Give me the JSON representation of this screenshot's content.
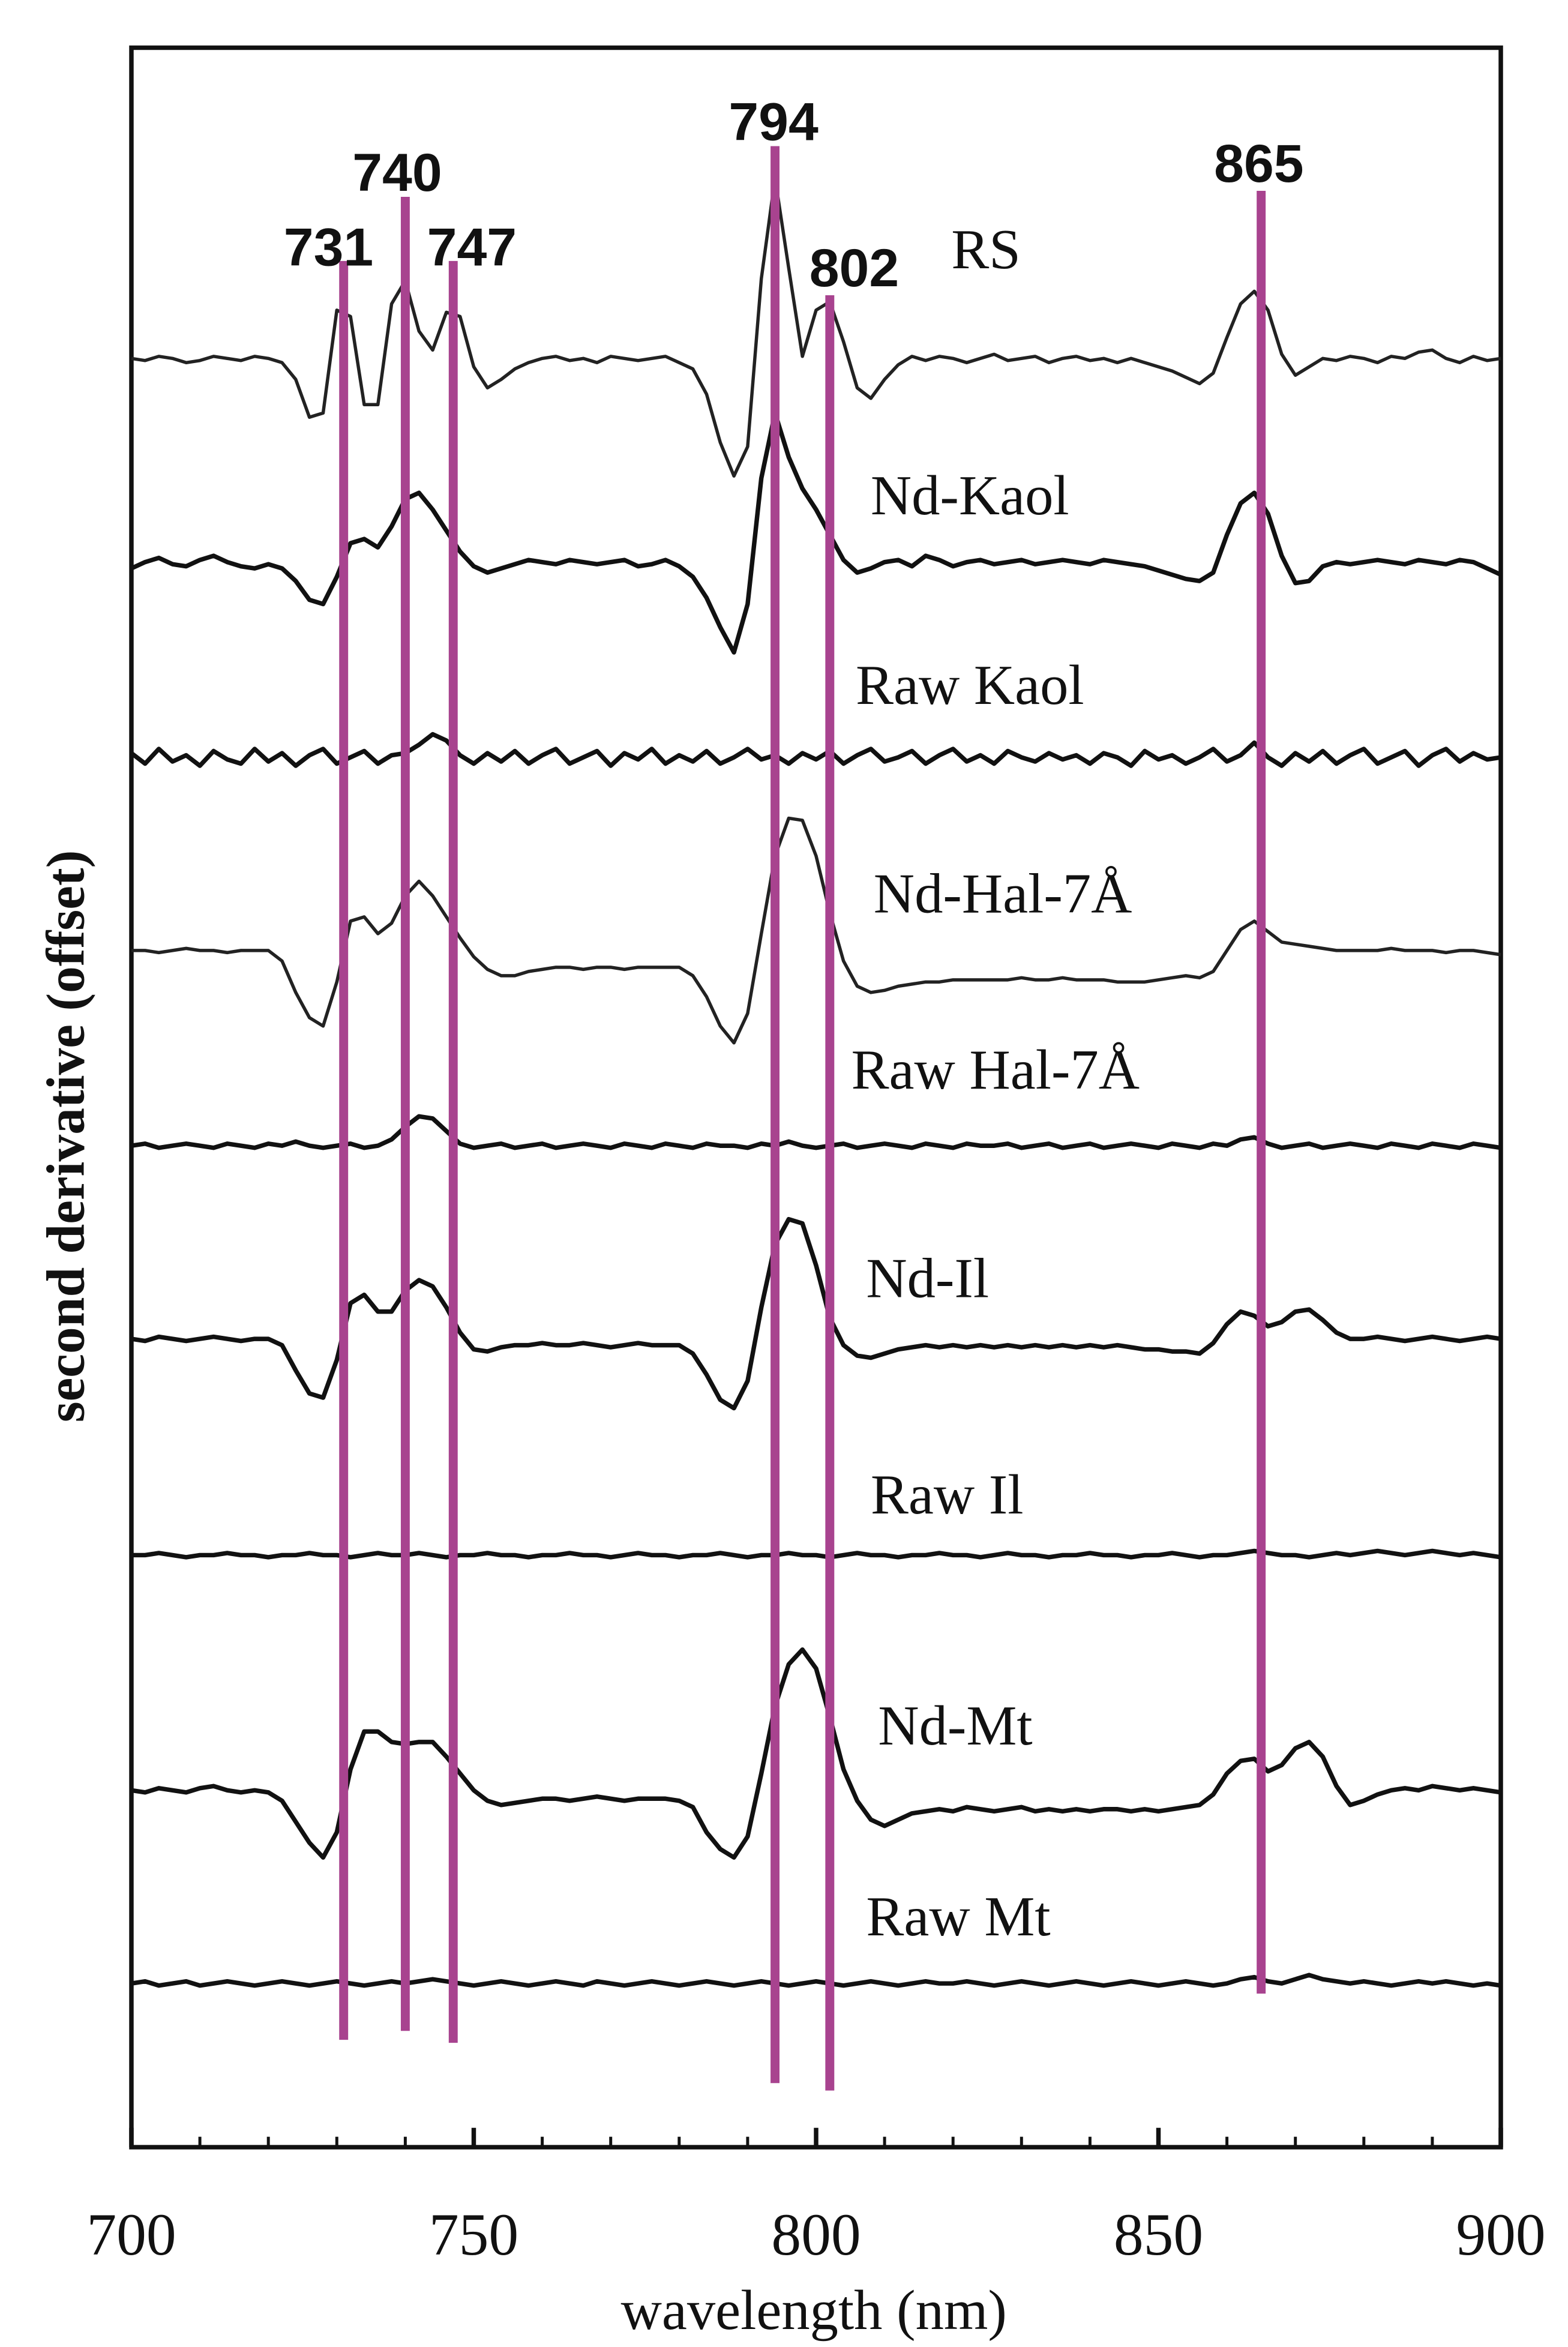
{
  "chart_data": {
    "type": "line",
    "xlabel": "wavelength (nm)",
    "ylabel": "second derivative (offset)",
    "xlim": [
      700,
      900
    ],
    "xticks": [
      700,
      750,
      800,
      850,
      900
    ],
    "xminorticks": [
      710,
      720,
      730,
      740,
      760,
      770,
      780,
      790,
      810,
      820,
      830,
      840,
      860,
      870,
      880,
      890
    ],
    "ylim": [
      0,
      100
    ],
    "peak_lines": [
      731,
      740,
      747,
      794,
      802,
      865
    ],
    "peak_line_color": "#a8438f",
    "x": [
      700,
      702,
      704,
      706,
      708,
      710,
      712,
      714,
      716,
      718,
      720,
      722,
      724,
      726,
      728,
      730,
      732,
      734,
      736,
      738,
      740,
      742,
      744,
      746,
      748,
      750,
      752,
      754,
      756,
      758,
      760,
      762,
      764,
      766,
      768,
      770,
      772,
      774,
      776,
      778,
      780,
      782,
      784,
      786,
      788,
      790,
      792,
      794,
      796,
      798,
      800,
      802,
      804,
      806,
      808,
      810,
      812,
      814,
      816,
      818,
      820,
      822,
      824,
      826,
      828,
      830,
      832,
      834,
      836,
      838,
      840,
      842,
      844,
      846,
      848,
      850,
      852,
      854,
      856,
      858,
      860,
      862,
      864,
      866,
      868,
      870,
      872,
      874,
      876,
      878,
      880,
      882,
      884,
      886,
      888,
      890,
      892,
      894,
      896,
      898,
      900
    ],
    "series": [
      {
        "name": "RS",
        "color": "#222222",
        "values": [
          85.2,
          85.1,
          85.3,
          85.2,
          85.0,
          85.1,
          85.3,
          85.2,
          85.1,
          85.3,
          85.2,
          85.0,
          84.2,
          82.4,
          82.6,
          87.5,
          87.2,
          83.0,
          83.0,
          87.8,
          88.9,
          86.5,
          85.6,
          87.4,
          87.2,
          84.8,
          83.8,
          84.2,
          84.7,
          85.0,
          85.2,
          85.3,
          85.1,
          85.2,
          85.0,
          85.3,
          85.2,
          85.1,
          85.2,
          85.3,
          85.0,
          84.7,
          83.5,
          81.2,
          79.6,
          81.0,
          89.0,
          93.8,
          89.5,
          85.3,
          87.5,
          87.9,
          86.0,
          83.8,
          83.3,
          84.2,
          84.9,
          85.3,
          85.1,
          85.3,
          85.2,
          85.0,
          85.2,
          85.4,
          85.1,
          85.2,
          85.3,
          85.0,
          85.2,
          85.3,
          85.1,
          85.2,
          85.0,
          85.2,
          85.0,
          84.8,
          84.6,
          84.3,
          84.0,
          84.5,
          86.2,
          87.8,
          88.4,
          87.5,
          85.4,
          84.4,
          84.8,
          85.2,
          85.1,
          85.3,
          85.2,
          85.0,
          85.3,
          85.2,
          85.5,
          85.6,
          85.2,
          85.0,
          85.3,
          85.1,
          85.2
        ]
      },
      {
        "name": "Nd-Kaol",
        "color": "#111111",
        "values": [
          75.2,
          75.5,
          75.7,
          75.4,
          75.3,
          75.6,
          75.8,
          75.5,
          75.3,
          75.2,
          75.4,
          75.2,
          74.6,
          73.7,
          73.5,
          74.8,
          76.4,
          76.6,
          76.2,
          77.2,
          78.5,
          78.8,
          78.0,
          77.0,
          76.0,
          75.3,
          75.0,
          75.2,
          75.4,
          75.6,
          75.5,
          75.4,
          75.6,
          75.5,
          75.4,
          75.5,
          75.6,
          75.3,
          75.4,
          75.6,
          75.3,
          74.8,
          73.8,
          72.4,
          71.2,
          73.5,
          79.5,
          82.6,
          80.5,
          79.0,
          78.0,
          76.8,
          75.6,
          75.0,
          75.2,
          75.5,
          75.6,
          75.3,
          75.8,
          75.6,
          75.3,
          75.5,
          75.6,
          75.4,
          75.5,
          75.6,
          75.4,
          75.5,
          75.6,
          75.5,
          75.4,
          75.6,
          75.5,
          75.4,
          75.3,
          75.1,
          74.9,
          74.7,
          74.6,
          75.0,
          76.8,
          78.3,
          78.8,
          77.8,
          75.8,
          74.5,
          74.6,
          75.3,
          75.5,
          75.4,
          75.5,
          75.6,
          75.5,
          75.4,
          75.6,
          75.5,
          75.4,
          75.6,
          75.5,
          75.2,
          74.9
        ]
      },
      {
        "name": "Raw Kaol",
        "color": "#111111",
        "values": [
          66.4,
          65.9,
          66.6,
          66.0,
          66.3,
          65.8,
          66.5,
          66.1,
          65.9,
          66.6,
          66.0,
          66.4,
          65.8,
          66.3,
          66.6,
          65.9,
          66.2,
          66.5,
          65.9,
          66.3,
          66.4,
          66.8,
          67.3,
          67.0,
          66.3,
          65.9,
          66.4,
          66.0,
          66.5,
          65.9,
          66.3,
          66.6,
          65.9,
          66.2,
          66.5,
          65.8,
          66.4,
          66.1,
          66.6,
          65.9,
          66.3,
          66.0,
          66.5,
          65.9,
          66.2,
          66.6,
          66.1,
          66.3,
          65.9,
          66.4,
          66.1,
          66.5,
          65.9,
          66.3,
          66.6,
          66.0,
          66.2,
          66.5,
          65.9,
          66.3,
          66.6,
          66.0,
          66.3,
          65.9,
          66.5,
          66.2,
          66.0,
          66.4,
          66.1,
          66.3,
          65.9,
          66.4,
          66.2,
          65.8,
          66.5,
          66.1,
          66.3,
          65.9,
          66.2,
          66.6,
          66.0,
          66.3,
          66.9,
          66.2,
          65.8,
          66.4,
          66.0,
          66.5,
          65.9,
          66.3,
          66.6,
          65.9,
          66.2,
          66.5,
          65.8,
          66.3,
          66.6,
          66.0,
          66.4,
          66.1,
          66.2
        ]
      },
      {
        "name": "Nd-Hal-7Å",
        "color": "#222222",
        "values": [
          57.0,
          57.0,
          56.9,
          57.0,
          57.1,
          57.0,
          57.0,
          56.9,
          57.0,
          57.0,
          57.0,
          56.5,
          55.0,
          53.8,
          53.4,
          55.5,
          58.4,
          58.6,
          57.8,
          58.3,
          59.6,
          60.3,
          59.6,
          58.6,
          57.6,
          56.7,
          56.1,
          55.8,
          55.8,
          56.0,
          56.1,
          56.2,
          56.2,
          56.1,
          56.2,
          56.2,
          56.1,
          56.2,
          56.2,
          56.2,
          56.2,
          55.8,
          54.8,
          53.4,
          52.6,
          54.0,
          57.8,
          61.5,
          63.3,
          63.2,
          61.5,
          58.8,
          56.5,
          55.3,
          55.0,
          55.1,
          55.3,
          55.4,
          55.5,
          55.5,
          55.6,
          55.6,
          55.6,
          55.6,
          55.6,
          55.7,
          55.6,
          55.6,
          55.7,
          55.6,
          55.6,
          55.6,
          55.5,
          55.5,
          55.5,
          55.6,
          55.7,
          55.8,
          55.7,
          56.0,
          57.0,
          58.0,
          58.4,
          57.9,
          57.4,
          57.3,
          57.2,
          57.1,
          57.0,
          57.0,
          57.0,
          57.0,
          57.1,
          57.0,
          57.0,
          57.0,
          56.9,
          57.0,
          57.0,
          56.9,
          56.8
        ]
      },
      {
        "name": "Raw Hal-7Å",
        "color": "#111111",
        "values": [
          47.7,
          47.8,
          47.6,
          47.7,
          47.8,
          47.7,
          47.6,
          47.8,
          47.7,
          47.6,
          47.8,
          47.7,
          47.9,
          47.7,
          47.6,
          47.7,
          47.8,
          47.6,
          47.7,
          48.0,
          48.6,
          49.1,
          49.0,
          48.4,
          47.8,
          47.6,
          47.7,
          47.8,
          47.6,
          47.7,
          47.8,
          47.6,
          47.7,
          47.8,
          47.7,
          47.6,
          47.8,
          47.7,
          47.6,
          47.8,
          47.7,
          47.6,
          47.8,
          47.7,
          47.7,
          47.6,
          47.8,
          47.7,
          47.9,
          47.7,
          47.6,
          47.7,
          47.8,
          47.6,
          47.7,
          47.8,
          47.7,
          47.6,
          47.8,
          47.7,
          47.6,
          47.8,
          47.7,
          47.7,
          47.8,
          47.6,
          47.7,
          47.8,
          47.6,
          47.7,
          47.8,
          47.6,
          47.7,
          47.8,
          47.7,
          47.6,
          47.8,
          47.7,
          47.6,
          47.8,
          47.7,
          48.0,
          48.1,
          47.8,
          47.6,
          47.7,
          47.8,
          47.6,
          47.7,
          47.8,
          47.7,
          47.6,
          47.8,
          47.7,
          47.6,
          47.8,
          47.7,
          47.6,
          47.8,
          47.7,
          47.6
        ]
      },
      {
        "name": "Nd-Il",
        "color": "#111111",
        "values": [
          38.5,
          38.4,
          38.6,
          38.5,
          38.4,
          38.5,
          38.6,
          38.5,
          38.4,
          38.5,
          38.5,
          38.2,
          37.0,
          35.9,
          35.7,
          37.5,
          40.2,
          40.6,
          39.8,
          39.8,
          40.8,
          41.3,
          41.0,
          40.0,
          38.8,
          38.0,
          37.9,
          38.1,
          38.2,
          38.2,
          38.3,
          38.2,
          38.2,
          38.3,
          38.2,
          38.1,
          38.2,
          38.3,
          38.2,
          38.2,
          38.2,
          37.8,
          36.8,
          35.6,
          35.2,
          36.5,
          40.0,
          43.0,
          44.2,
          44.0,
          42.0,
          39.5,
          38.2,
          37.7,
          37.6,
          37.8,
          38.0,
          38.1,
          38.2,
          38.1,
          38.2,
          38.1,
          38.2,
          38.1,
          38.2,
          38.1,
          38.2,
          38.1,
          38.2,
          38.1,
          38.2,
          38.1,
          38.2,
          38.1,
          38.0,
          38.0,
          37.9,
          37.9,
          37.8,
          38.3,
          39.2,
          39.8,
          39.6,
          39.1,
          39.3,
          39.8,
          39.9,
          39.4,
          38.8,
          38.5,
          38.5,
          38.6,
          38.5,
          38.4,
          38.5,
          38.6,
          38.5,
          38.4,
          38.5,
          38.6,
          38.5
        ]
      },
      {
        "name": "Raw Il",
        "color": "#111111",
        "values": [
          28.2,
          28.2,
          28.3,
          28.2,
          28.1,
          28.2,
          28.2,
          28.3,
          28.2,
          28.2,
          28.1,
          28.2,
          28.2,
          28.3,
          28.2,
          28.2,
          28.1,
          28.2,
          28.3,
          28.2,
          28.2,
          28.3,
          28.2,
          28.1,
          28.2,
          28.2,
          28.3,
          28.2,
          28.2,
          28.1,
          28.2,
          28.2,
          28.3,
          28.2,
          28.2,
          28.1,
          28.2,
          28.3,
          28.2,
          28.2,
          28.1,
          28.2,
          28.2,
          28.3,
          28.2,
          28.1,
          28.2,
          28.2,
          28.3,
          28.2,
          28.2,
          28.1,
          28.2,
          28.3,
          28.2,
          28.2,
          28.1,
          28.2,
          28.2,
          28.3,
          28.2,
          28.2,
          28.1,
          28.2,
          28.3,
          28.2,
          28.2,
          28.1,
          28.2,
          28.2,
          28.3,
          28.2,
          28.2,
          28.1,
          28.2,
          28.2,
          28.3,
          28.2,
          28.1,
          28.2,
          28.2,
          28.3,
          28.4,
          28.3,
          28.2,
          28.2,
          28.1,
          28.2,
          28.3,
          28.2,
          28.3,
          28.4,
          28.3,
          28.2,
          28.3,
          28.4,
          28.3,
          28.2,
          28.3,
          28.2,
          28.1
        ]
      },
      {
        "name": "Nd-Mt",
        "color": "#111111",
        "values": [
          17.0,
          16.9,
          17.1,
          17.0,
          16.9,
          17.1,
          17.2,
          17.0,
          16.9,
          17.0,
          16.9,
          16.5,
          15.5,
          14.5,
          13.8,
          15.0,
          18.0,
          19.8,
          19.8,
          19.3,
          19.2,
          19.3,
          19.3,
          18.6,
          17.8,
          17.0,
          16.5,
          16.3,
          16.4,
          16.5,
          16.6,
          16.6,
          16.5,
          16.6,
          16.7,
          16.6,
          16.5,
          16.6,
          16.6,
          16.6,
          16.5,
          16.2,
          15.0,
          14.2,
          13.8,
          14.8,
          17.8,
          21.0,
          23.0,
          23.7,
          22.8,
          20.5,
          18.0,
          16.5,
          15.6,
          15.3,
          15.6,
          15.9,
          16.0,
          16.1,
          16.0,
          16.2,
          16.1,
          16.0,
          16.1,
          16.2,
          16.0,
          16.1,
          16.0,
          16.1,
          16.0,
          16.1,
          16.1,
          16.0,
          16.1,
          16.0,
          16.1,
          16.2,
          16.3,
          16.8,
          17.8,
          18.4,
          18.5,
          17.9,
          18.2,
          19.0,
          19.3,
          18.6,
          17.2,
          16.3,
          16.5,
          16.8,
          17.0,
          17.1,
          17.0,
          17.2,
          17.1,
          17.0,
          17.1,
          17.0,
          16.9
        ]
      },
      {
        "name": "Raw Mt",
        "color": "#111111",
        "values": [
          7.8,
          7.9,
          7.7,
          7.8,
          7.9,
          7.7,
          7.8,
          7.9,
          7.8,
          7.7,
          7.8,
          7.9,
          7.8,
          7.7,
          7.8,
          7.9,
          7.8,
          7.7,
          7.8,
          7.9,
          7.8,
          7.9,
          8.0,
          7.9,
          7.8,
          7.7,
          7.8,
          7.9,
          7.8,
          7.7,
          7.8,
          7.9,
          7.8,
          7.7,
          7.9,
          7.8,
          7.7,
          7.8,
          7.9,
          7.8,
          7.7,
          7.8,
          7.9,
          7.8,
          7.7,
          7.8,
          7.9,
          7.8,
          7.7,
          7.8,
          7.9,
          7.8,
          7.7,
          7.8,
          7.9,
          7.8,
          7.7,
          7.8,
          7.9,
          7.8,
          7.8,
          7.9,
          7.8,
          7.7,
          7.8,
          7.9,
          7.8,
          7.7,
          7.8,
          7.9,
          7.8,
          7.7,
          7.8,
          7.9,
          7.8,
          7.7,
          7.8,
          7.9,
          7.8,
          7.7,
          7.8,
          8.0,
          8.1,
          7.9,
          7.8,
          8.0,
          8.2,
          8.0,
          7.9,
          7.8,
          7.9,
          7.8,
          7.7,
          7.8,
          7.9,
          7.8,
          7.9,
          7.8,
          7.7,
          7.8,
          7.7
        ]
      }
    ]
  }
}
